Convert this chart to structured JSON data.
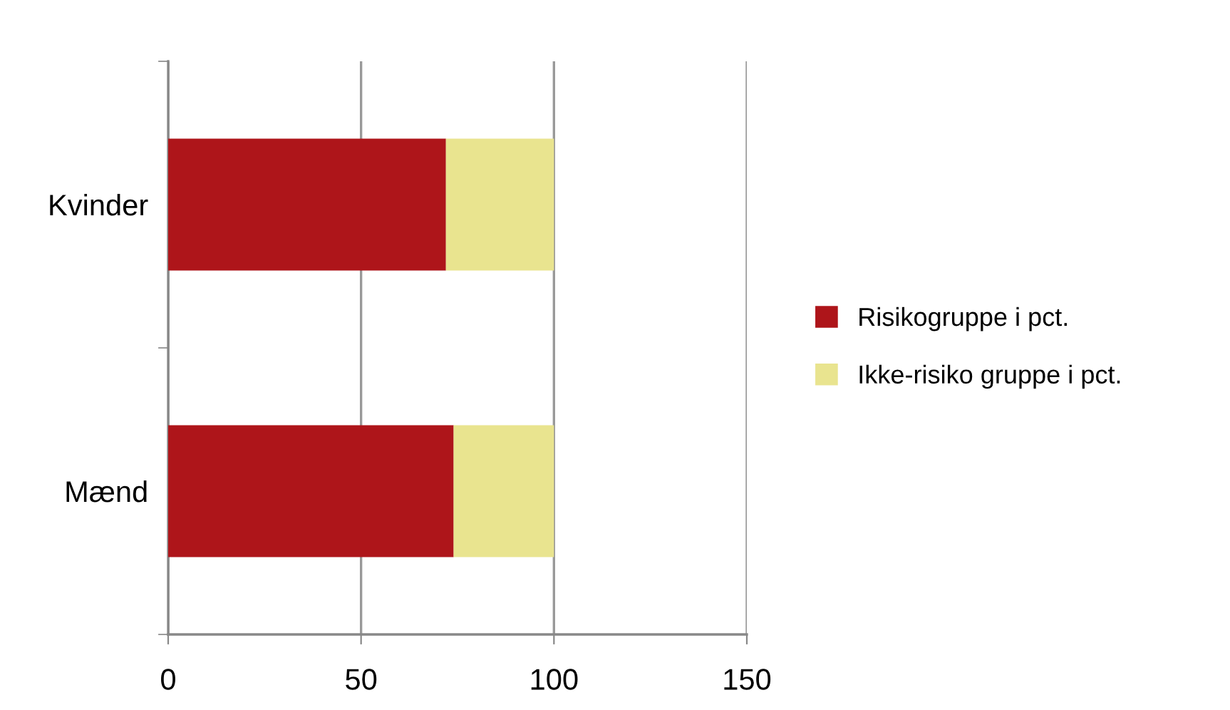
{
  "chart_data": {
    "type": "bar",
    "orientation": "horizontal",
    "stacked": true,
    "categories": [
      "Kvinder",
      "Mænd"
    ],
    "series": [
      {
        "name": "Risikogruppe i pct.",
        "color": "#ae151a",
        "values": [
          72,
          74
        ]
      },
      {
        "name": "Ikke-risiko gruppe i pct.",
        "color": "#e9e48f",
        "values": [
          28,
          26
        ]
      }
    ],
    "xlim": [
      0,
      150
    ],
    "xticks": [
      0,
      50,
      100,
      150
    ],
    "grid": "x",
    "legend": "right"
  }
}
